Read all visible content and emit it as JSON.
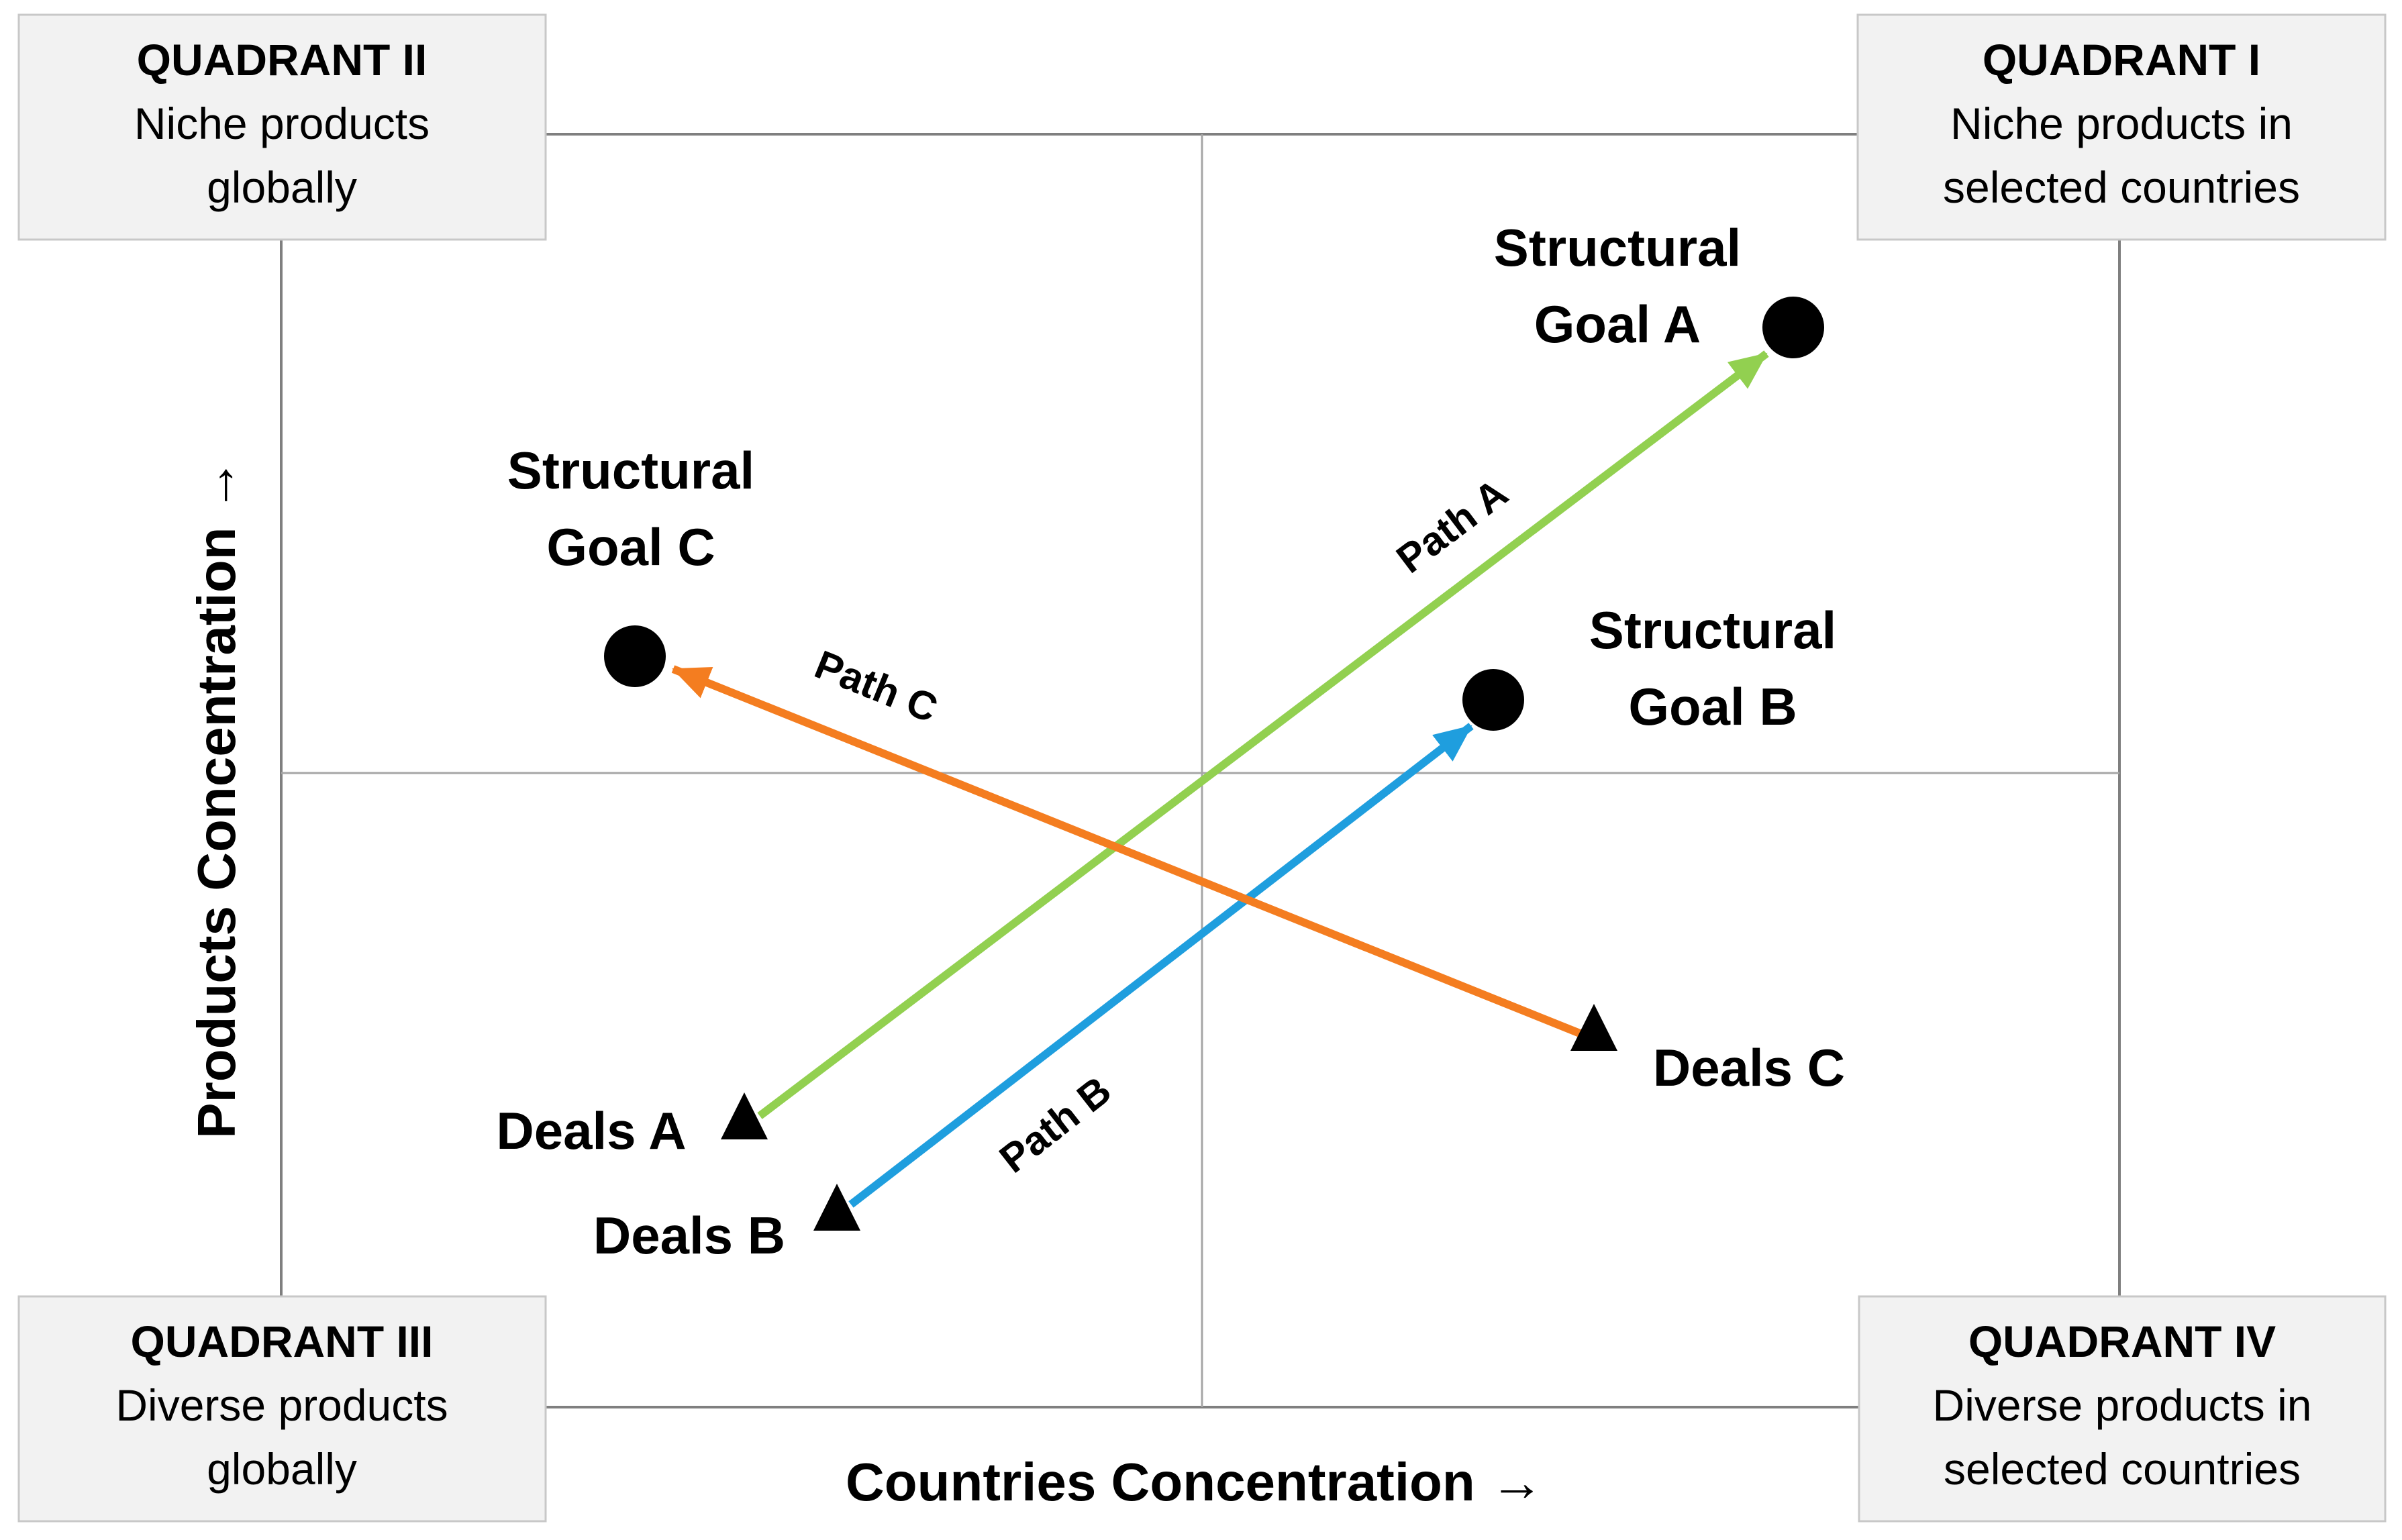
{
  "axes": {
    "x_label": "Countries Concentration →",
    "y_label": "Products Concentration →"
  },
  "quadrants": [
    {
      "title": "QUADRANT I",
      "lines": [
        "Niche products in",
        "selected countries"
      ]
    },
    {
      "title": "QUADRANT II",
      "lines": [
        "Niche products",
        "globally"
      ]
    },
    {
      "title": "QUADRANT III",
      "lines": [
        "Diverse products",
        "globally"
      ]
    },
    {
      "title": "QUADRANT IV",
      "lines": [
        "Diverse products in",
        "selected countries"
      ]
    }
  ],
  "goals": [
    {
      "lines": [
        "Structural",
        "Goal A"
      ]
    },
    {
      "lines": [
        "Structural",
        "Goal B"
      ]
    },
    {
      "lines": [
        "Structural",
        "Goal C"
      ]
    }
  ],
  "deals": [
    {
      "label": "Deals A"
    },
    {
      "label": "Deals B"
    },
    {
      "label": "Deals C"
    }
  ],
  "paths": [
    {
      "label": "Path A",
      "color": "#92d050"
    },
    {
      "label": "Path B",
      "color": "#1f9ede"
    },
    {
      "label": "Path C",
      "color": "#f47d20"
    }
  ],
  "colors": {
    "box_fill": "#f2f2f2",
    "frame": "#7f7f7f",
    "marker": "#000000"
  }
}
